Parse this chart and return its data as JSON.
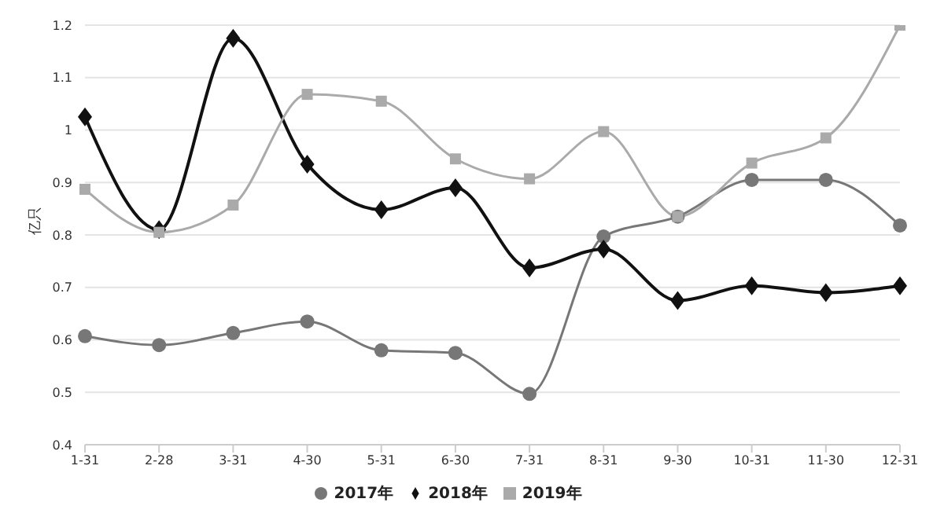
{
  "chart_data": {
    "type": "line",
    "ylabel": "亿只",
    "categories": [
      "1-31",
      "2-28",
      "3-31",
      "4-30",
      "5-31",
      "6-30",
      "7-31",
      "8-31",
      "9-30",
      "10-31",
      "11-30",
      "12-31"
    ],
    "series": [
      {
        "name": "2017年",
        "color": "#777777",
        "marker": "circle",
        "values": [
          0.607,
          0.59,
          0.613,
          0.635,
          0.58,
          0.575,
          0.497,
          0.797,
          0.835,
          0.905,
          0.905,
          0.818
        ]
      },
      {
        "name": "2018年",
        "color": "#111111",
        "marker": "diamond",
        "values": [
          1.025,
          0.81,
          1.175,
          0.935,
          0.848,
          0.89,
          0.737,
          0.773,
          0.675,
          0.703,
          0.69,
          0.703
        ]
      },
      {
        "name": "2019年",
        "color": "#aaaaaa",
        "marker": "square",
        "values": [
          0.887,
          0.805,
          0.857,
          1.068,
          1.055,
          0.945,
          0.907,
          0.997,
          0.835,
          0.937,
          0.985,
          1.2
        ]
      }
    ],
    "ylim": [
      0.4,
      1.2
    ],
    "yticks": [
      0.4,
      0.5,
      0.6,
      0.7,
      0.8,
      0.9,
      1,
      1.1,
      1.2
    ],
    "grid": "y",
    "legend": "bottom"
  }
}
